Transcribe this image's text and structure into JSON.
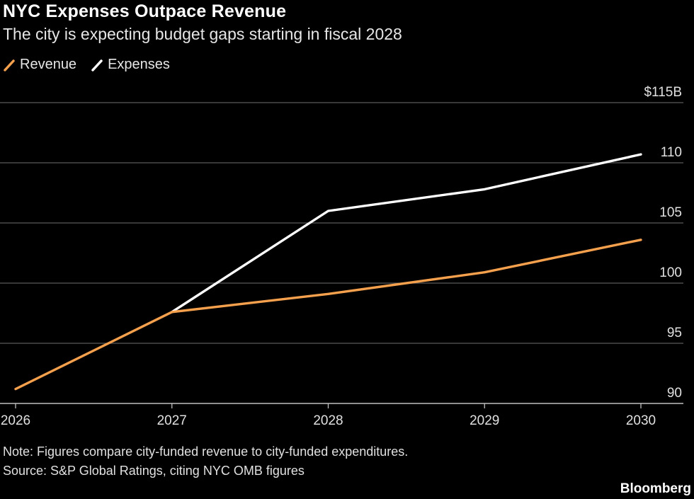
{
  "header": {
    "title": "NYC Expenses Outpace Revenue",
    "subtitle": "The city is expecting budget gaps starting in fiscal 2028"
  },
  "legend": [
    {
      "label": "Revenue",
      "color": "#f5a04d"
    },
    {
      "label": "Expenses",
      "color": "#ffffff"
    }
  ],
  "chart_data": {
    "type": "line",
    "x": [
      "2026",
      "2027",
      "2028",
      "2029",
      "2030"
    ],
    "series": [
      {
        "name": "Revenue",
        "color": "#f5a04d",
        "values": [
          91.2,
          97.6,
          99.1,
          100.9,
          103.6
        ]
      },
      {
        "name": "Expenses",
        "color": "#ffffff",
        "values": [
          null,
          97.6,
          106.0,
          107.8,
          110.7
        ]
      }
    ],
    "ylim": [
      90,
      115
    ],
    "yticks": [
      90,
      95,
      100,
      105,
      110,
      115
    ],
    "ytick_labels": [
      "90",
      "95",
      "100",
      "105",
      "110",
      "$115B"
    ],
    "grid": true,
    "legend_position": "top-left",
    "colors": {
      "gridline": "#5a5a5a",
      "axis": "#bfbfbf"
    }
  },
  "footer": {
    "note": "Note: Figures compare city-funded revenue to city-funded expenditures.",
    "source": "Source: S&P Global Ratings, citing NYC OMB figures",
    "brand": "Bloomberg"
  }
}
